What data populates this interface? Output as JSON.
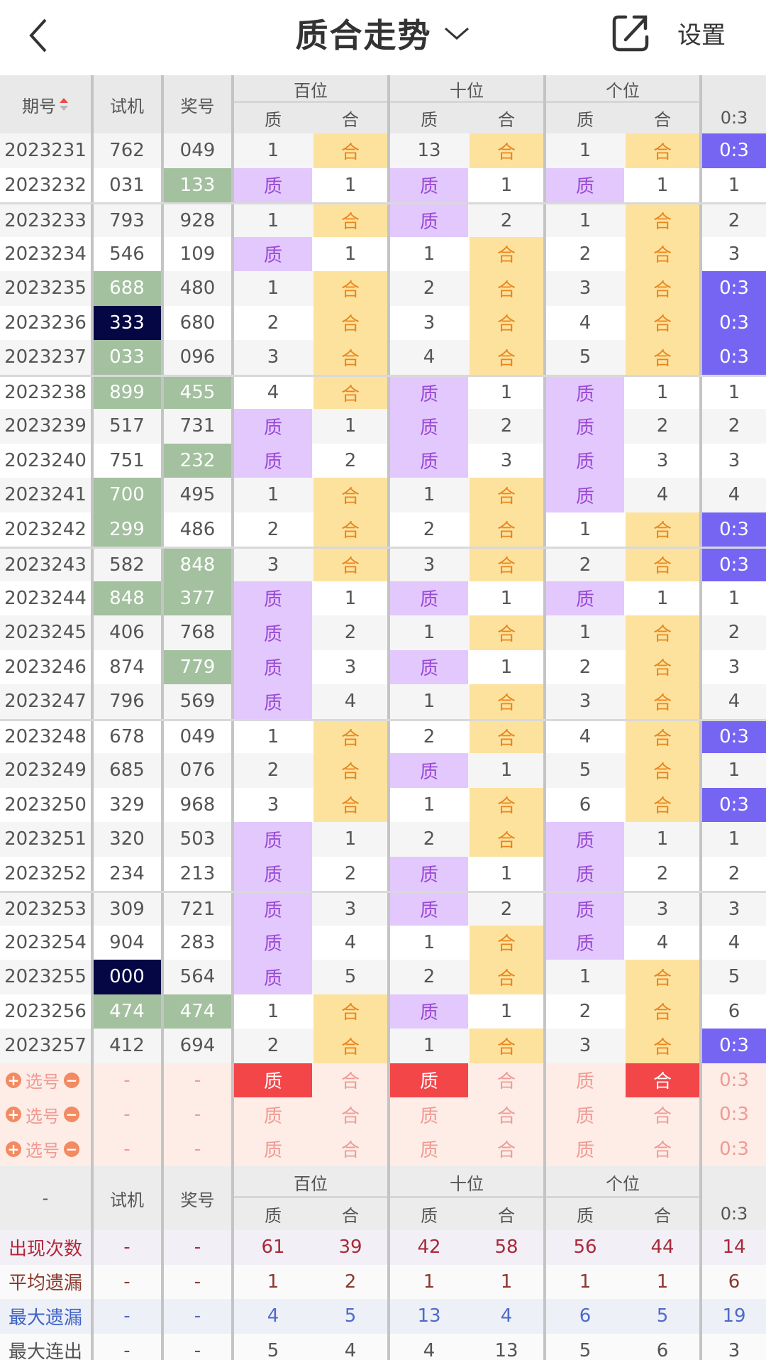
{
  "header": {
    "title": "质合走势",
    "settings_label": "设置",
    "icons": {
      "back": "chevron-left-icon",
      "dropdown": "chevron-down-icon",
      "share": "share-external-icon"
    }
  },
  "table_header": {
    "period": "期号",
    "trial": "试机",
    "prize": "奖号",
    "groups": [
      "百位",
      "十位",
      "个位"
    ],
    "sub": [
      "质",
      "合",
      "质",
      "合",
      "质",
      "合",
      "0:3"
    ],
    "sort_icon": "sort-up-down-icon"
  },
  "colors": {
    "zhi_bg": "#e2c8fc",
    "zhi_fg": "#9a49d6",
    "he_bg": "#fde29e",
    "he_fg": "#e9851d",
    "ratio_bg": "#7665f3",
    "trial_hit_bg": "#a3c09f",
    "leopard_bg": "#050644",
    "pick_bg": "#fdede6",
    "pick_sel": "#f34649"
  },
  "rows": [
    {
      "p": "2023231",
      "t": "762",
      "a": "049",
      "ts": "",
      "as": "",
      "v": [
        "1",
        "合",
        "13",
        "合",
        "1",
        "合",
        "0:3"
      ]
    },
    {
      "p": "2023232",
      "t": "031",
      "a": "133",
      "ts": "",
      "as": "green",
      "v": [
        "质",
        "1",
        "质",
        "1",
        "质",
        "1",
        "1"
      ]
    },
    {
      "p": "2023233",
      "t": "793",
      "a": "928",
      "ts": "",
      "as": "",
      "v": [
        "1",
        "合",
        "质",
        "2",
        "1",
        "合",
        "2"
      ]
    },
    {
      "p": "2023234",
      "t": "546",
      "a": "109",
      "ts": "",
      "as": "",
      "v": [
        "质",
        "1",
        "1",
        "合",
        "2",
        "合",
        "3"
      ]
    },
    {
      "p": "2023235",
      "t": "688",
      "a": "480",
      "ts": "green",
      "as": "",
      "v": [
        "1",
        "合",
        "2",
        "合",
        "3",
        "合",
        "0:3"
      ]
    },
    {
      "p": "2023236",
      "t": "333",
      "a": "680",
      "ts": "navy",
      "as": "",
      "v": [
        "2",
        "合",
        "3",
        "合",
        "4",
        "合",
        "0:3"
      ]
    },
    {
      "p": "2023237",
      "t": "033",
      "a": "096",
      "ts": "green",
      "as": "",
      "v": [
        "3",
        "合",
        "4",
        "合",
        "5",
        "合",
        "0:3"
      ]
    },
    {
      "p": "2023238",
      "t": "899",
      "a": "455",
      "ts": "green",
      "as": "green",
      "v": [
        "4",
        "合",
        "质",
        "1",
        "质",
        "1",
        "1"
      ]
    },
    {
      "p": "2023239",
      "t": "517",
      "a": "731",
      "ts": "",
      "as": "",
      "v": [
        "质",
        "1",
        "质",
        "2",
        "质",
        "2",
        "2"
      ]
    },
    {
      "p": "2023240",
      "t": "751",
      "a": "232",
      "ts": "",
      "as": "green",
      "v": [
        "质",
        "2",
        "质",
        "3",
        "质",
        "3",
        "3"
      ]
    },
    {
      "p": "2023241",
      "t": "700",
      "a": "495",
      "ts": "green",
      "as": "",
      "v": [
        "1",
        "合",
        "1",
        "合",
        "质",
        "4",
        "4"
      ]
    },
    {
      "p": "2023242",
      "t": "299",
      "a": "486",
      "ts": "green",
      "as": "",
      "v": [
        "2",
        "合",
        "2",
        "合",
        "1",
        "合",
        "0:3"
      ]
    },
    {
      "p": "2023243",
      "t": "582",
      "a": "848",
      "ts": "",
      "as": "green",
      "v": [
        "3",
        "合",
        "3",
        "合",
        "2",
        "合",
        "0:3"
      ]
    },
    {
      "p": "2023244",
      "t": "848",
      "a": "377",
      "ts": "green",
      "as": "green",
      "v": [
        "质",
        "1",
        "质",
        "1",
        "质",
        "1",
        "1"
      ]
    },
    {
      "p": "2023245",
      "t": "406",
      "a": "768",
      "ts": "",
      "as": "",
      "v": [
        "质",
        "2",
        "1",
        "合",
        "1",
        "合",
        "2"
      ]
    },
    {
      "p": "2023246",
      "t": "874",
      "a": "779",
      "ts": "",
      "as": "green",
      "v": [
        "质",
        "3",
        "质",
        "1",
        "2",
        "合",
        "3"
      ]
    },
    {
      "p": "2023247",
      "t": "796",
      "a": "569",
      "ts": "",
      "as": "",
      "v": [
        "质",
        "4",
        "1",
        "合",
        "3",
        "合",
        "4"
      ]
    },
    {
      "p": "2023248",
      "t": "678",
      "a": "049",
      "ts": "",
      "as": "",
      "v": [
        "1",
        "合",
        "2",
        "合",
        "4",
        "合",
        "0:3"
      ]
    },
    {
      "p": "2023249",
      "t": "685",
      "a": "076",
      "ts": "",
      "as": "",
      "v": [
        "2",
        "合",
        "质",
        "1",
        "5",
        "合",
        "1"
      ]
    },
    {
      "p": "2023250",
      "t": "329",
      "a": "968",
      "ts": "",
      "as": "",
      "v": [
        "3",
        "合",
        "1",
        "合",
        "6",
        "合",
        "0:3"
      ]
    },
    {
      "p": "2023251",
      "t": "320",
      "a": "503",
      "ts": "",
      "as": "",
      "v": [
        "质",
        "1",
        "2",
        "合",
        "质",
        "1",
        "1"
      ]
    },
    {
      "p": "2023252",
      "t": "234",
      "a": "213",
      "ts": "",
      "as": "",
      "v": [
        "质",
        "2",
        "质",
        "1",
        "质",
        "2",
        "2"
      ]
    },
    {
      "p": "2023253",
      "t": "309",
      "a": "721",
      "ts": "",
      "as": "",
      "v": [
        "质",
        "3",
        "质",
        "2",
        "质",
        "3",
        "3"
      ]
    },
    {
      "p": "2023254",
      "t": "904",
      "a": "283",
      "ts": "",
      "as": "",
      "v": [
        "质",
        "4",
        "1",
        "合",
        "质",
        "4",
        "4"
      ]
    },
    {
      "p": "2023255",
      "t": "000",
      "a": "564",
      "ts": "navy",
      "as": "",
      "v": [
        "质",
        "5",
        "2",
        "合",
        "1",
        "合",
        "5"
      ]
    },
    {
      "p": "2023256",
      "t": "474",
      "a": "474",
      "ts": "green",
      "as": "green",
      "v": [
        "1",
        "合",
        "质",
        "1",
        "2",
        "合",
        "6"
      ]
    },
    {
      "p": "2023257",
      "t": "412",
      "a": "694",
      "ts": "",
      "as": "",
      "v": [
        "2",
        "合",
        "1",
        "合",
        "3",
        "合",
        "0:3"
      ]
    }
  ],
  "pick_rows": [
    {
      "label": "选号",
      "t": "-",
      "a": "-",
      "v": [
        "质",
        "合",
        "质",
        "合",
        "质",
        "合",
        "0:3"
      ],
      "sel": [
        true,
        false,
        true,
        false,
        false,
        true,
        false
      ]
    },
    {
      "label": "选号",
      "t": "-",
      "a": "-",
      "v": [
        "质",
        "合",
        "质",
        "合",
        "质",
        "合",
        "0:3"
      ],
      "sel": [
        false,
        false,
        false,
        false,
        false,
        false,
        false
      ]
    },
    {
      "label": "选号",
      "t": "-",
      "a": "-",
      "v": [
        "质",
        "合",
        "质",
        "合",
        "质",
        "合",
        "0:3"
      ],
      "sel": [
        false,
        false,
        false,
        false,
        false,
        false,
        false
      ]
    }
  ],
  "stats_header": {
    "first": "-",
    "trial": "试机",
    "prize": "奖号",
    "groups": [
      "百位",
      "十位",
      "个位"
    ],
    "sub": [
      "质",
      "合",
      "质",
      "合",
      "质",
      "合",
      "0:3"
    ]
  },
  "stats": [
    {
      "label": "出现次数",
      "t": "-",
      "a": "-",
      "v": [
        "61",
        "39",
        "42",
        "58",
        "56",
        "44",
        "14"
      ]
    },
    {
      "label": "平均遗漏",
      "t": "-",
      "a": "-",
      "v": [
        "1",
        "2",
        "1",
        "1",
        "1",
        "1",
        "6"
      ]
    },
    {
      "label": "最大遗漏",
      "t": "-",
      "a": "-",
      "v": [
        "4",
        "5",
        "13",
        "4",
        "6",
        "5",
        "19"
      ]
    },
    {
      "label": "最大连出",
      "t": "-",
      "a": "-",
      "v": [
        "5",
        "4",
        "4",
        "13",
        "5",
        "6",
        "3"
      ]
    }
  ]
}
